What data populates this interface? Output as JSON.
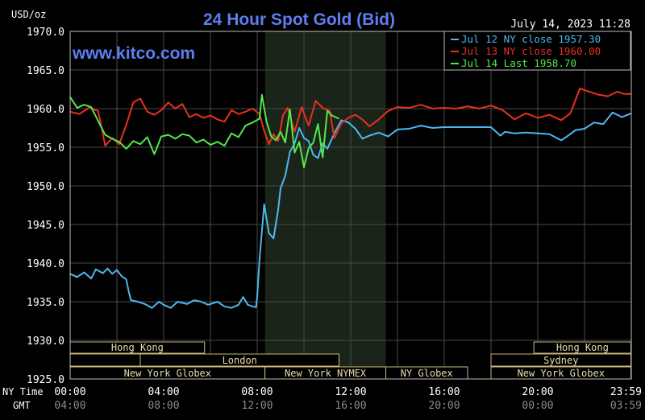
{
  "chart_data": {
    "type": "line",
    "title": "24 Hour Spot Gold (Bid)",
    "unit_label": "USD/oz",
    "timestamp": "July 14, 2023 11:28",
    "website": "www.kitco.com",
    "ylim": [
      1925,
      1970
    ],
    "y_ticks": [
      "1970.0",
      "1965.0",
      "1960.0",
      "1955.0",
      "1950.0",
      "1945.0",
      "1940.0",
      "1935.0",
      "1930.0",
      "1925.0"
    ],
    "grid": true,
    "legend_position": "top-right",
    "x_row_labels": [
      "NY Time",
      "GMT"
    ],
    "x_ticks_ny": [
      "00:00",
      "04:00",
      "08:00",
      "12:00",
      "16:00",
      "20:00",
      "23:59"
    ],
    "x_ticks_gmt": [
      "04:00",
      "08:00",
      "12:00",
      "16:00",
      "20:00",
      "00:00",
      "03:59"
    ],
    "series": [
      {
        "name": "Jul 12 NY close 1957.30",
        "color": "#4cb8ef",
        "x": [
          0,
          0.3,
          0.6,
          0.9,
          1.1,
          1.4,
          1.6,
          1.8,
          2.0,
          2.2,
          2.4,
          2.5,
          2.6,
          2.9,
          3.2,
          3.5,
          3.8,
          4.0,
          4.3,
          4.6,
          5.0,
          5.3,
          5.6,
          5.9,
          6.3,
          6.6,
          6.9,
          7.2,
          7.4,
          7.6,
          7.8,
          7.95,
          8.0,
          8.1,
          8.3,
          8.5,
          8.7,
          8.9,
          9.0,
          9.2,
          9.4,
          9.6,
          9.8,
          10.0,
          10.2,
          10.4,
          10.6,
          10.8,
          11.0,
          11.3,
          11.6,
          11.9,
          12.2,
          12.5,
          12.8,
          13.2,
          13.6,
          14.0,
          14.5,
          15.0,
          15.5,
          16.0,
          16.5,
          17.0,
          17.5,
          18.0,
          18.4,
          18.6,
          19.0,
          19.5,
          20.0,
          20.5,
          21.0,
          21.3,
          21.6,
          22.0,
          22.4,
          22.8,
          23.2,
          23.6,
          24.0
        ],
        "values": [
          1938.6,
          1938.2,
          1938.8,
          1938.0,
          1939.2,
          1938.7,
          1939.3,
          1938.6,
          1939.1,
          1938.3,
          1937.9,
          1936.4,
          1935.2,
          1935.0,
          1934.7,
          1934.2,
          1935.0,
          1934.6,
          1934.2,
          1935.0,
          1934.7,
          1935.2,
          1935.0,
          1934.6,
          1935.0,
          1934.4,
          1934.2,
          1934.6,
          1935.6,
          1934.6,
          1934.4,
          1934.3,
          1935.6,
          1940.5,
          1947.6,
          1943.9,
          1943.2,
          1947.0,
          1949.7,
          1951.3,
          1954.4,
          1955.5,
          1957.5,
          1956.2,
          1955.8,
          1954.0,
          1953.6,
          1955.5,
          1954.8,
          1956.8,
          1958.5,
          1958.2,
          1957.4,
          1956.1,
          1956.5,
          1956.9,
          1956.4,
          1957.3,
          1957.4,
          1957.8,
          1957.5,
          1957.6,
          1957.6,
          1957.6,
          1957.6,
          1957.6,
          1956.5,
          1957.0,
          1956.8,
          1956.9,
          1956.8,
          1956.7,
          1955.9,
          1956.5,
          1957.2,
          1957.4,
          1958.2,
          1958.0,
          1959.5,
          1958.9,
          1959.4
        ]
      },
      {
        "name": "Jul 13 NY close 1960.00",
        "color": "#e8311f",
        "x": [
          0,
          0.4,
          0.8,
          1.2,
          1.5,
          1.8,
          2.1,
          2.4,
          2.7,
          3.0,
          3.3,
          3.6,
          3.9,
          4.2,
          4.5,
          4.8,
          5.1,
          5.4,
          5.7,
          6.0,
          6.3,
          6.6,
          6.9,
          7.2,
          7.5,
          7.8,
          8.1,
          8.3,
          8.5,
          8.7,
          8.9,
          9.1,
          9.3,
          9.6,
          9.9,
          10.2,
          10.5,
          10.8,
          11.1,
          11.3,
          11.6,
          11.9,
          12.2,
          12.5,
          12.8,
          13.2,
          13.6,
          14.0,
          14.5,
          15.0,
          15.5,
          16.0,
          16.5,
          17.0,
          17.5,
          18.0,
          18.5,
          19.0,
          19.5,
          20.0,
          20.5,
          21.0,
          21.4,
          21.8,
          22.2,
          22.6,
          23.0,
          23.4,
          23.7,
          24.0
        ],
        "values": [
          1959.6,
          1959.3,
          1960.1,
          1959.7,
          1955.2,
          1956.2,
          1955.4,
          1957.9,
          1960.8,
          1961.3,
          1959.6,
          1959.2,
          1959.8,
          1960.8,
          1960.0,
          1960.6,
          1958.9,
          1959.3,
          1958.8,
          1959.1,
          1958.6,
          1958.3,
          1959.8,
          1959.3,
          1959.6,
          1960.0,
          1959.3,
          1957.1,
          1955.4,
          1956.7,
          1955.8,
          1959.1,
          1960.1,
          1957.0,
          1960.2,
          1957.8,
          1961.0,
          1960.1,
          1959.7,
          1956.2,
          1958.1,
          1958.8,
          1959.2,
          1958.6,
          1957.7,
          1958.6,
          1959.7,
          1960.2,
          1960.1,
          1960.5,
          1960.0,
          1960.1,
          1960.0,
          1960.3,
          1960.0,
          1960.4,
          1959.8,
          1958.6,
          1959.4,
          1958.8,
          1959.2,
          1958.5,
          1959.4,
          1962.6,
          1962.2,
          1961.8,
          1961.6,
          1962.2,
          1961.9,
          1961.9
        ]
      },
      {
        "name": "Jul 14 Last 1958.70",
        "color": "#53e84a",
        "x": [
          0,
          0.3,
          0.6,
          0.9,
          1.2,
          1.5,
          1.8,
          2.1,
          2.4,
          2.7,
          3.0,
          3.3,
          3.6,
          3.9,
          4.2,
          4.5,
          4.8,
          5.1,
          5.4,
          5.7,
          6.0,
          6.3,
          6.6,
          6.9,
          7.2,
          7.5,
          7.8,
          8.1,
          8.2,
          8.4,
          8.6,
          8.8,
          9.0,
          9.2,
          9.4,
          9.6,
          9.8,
          10.0,
          10.2,
          10.4,
          10.6,
          10.8,
          11.0,
          11.2,
          11.5
        ],
        "values": [
          1961.5,
          1960.1,
          1960.5,
          1960.2,
          1958.4,
          1956.6,
          1956.1,
          1955.7,
          1954.8,
          1955.8,
          1955.4,
          1956.3,
          1954.1,
          1956.4,
          1956.6,
          1956.1,
          1956.7,
          1956.5,
          1955.6,
          1956.0,
          1955.3,
          1955.7,
          1955.2,
          1956.8,
          1956.3,
          1957.8,
          1958.2,
          1958.7,
          1961.8,
          1958.3,
          1956.4,
          1955.9,
          1957.0,
          1955.6,
          1959.9,
          1954.3,
          1955.7,
          1952.4,
          1954.9,
          1955.6,
          1958.0,
          1953.7,
          1959.7,
          1959.1,
          1958.7
        ]
      }
    ],
    "market_sessions": [
      {
        "label": "Hong Kong",
        "row": 1,
        "start": "00:00",
        "end": "05:45"
      },
      {
        "label": "Hong Kong",
        "row": 1,
        "start": "19:50",
        "end": "23:59"
      },
      {
        "label": "London",
        "row": 2,
        "start": "03:00",
        "end": "11:30"
      },
      {
        "label": "Sydney",
        "row": 2,
        "start": "18:00",
        "end": "23:59"
      },
      {
        "label": "New York Globex",
        "row": 3,
        "start": "00:00",
        "end": "08:20"
      },
      {
        "label": "New York NYMEX",
        "row": 3,
        "start": "08:20",
        "end": "13:30"
      },
      {
        "label": "NY Globex",
        "row": 3,
        "start": "13:30",
        "end": "17:00"
      },
      {
        "label": "New York Globex",
        "row": 3,
        "start": "18:00",
        "end": "23:59"
      }
    ],
    "highlight_range": [
      "08:20",
      "13:30"
    ]
  }
}
